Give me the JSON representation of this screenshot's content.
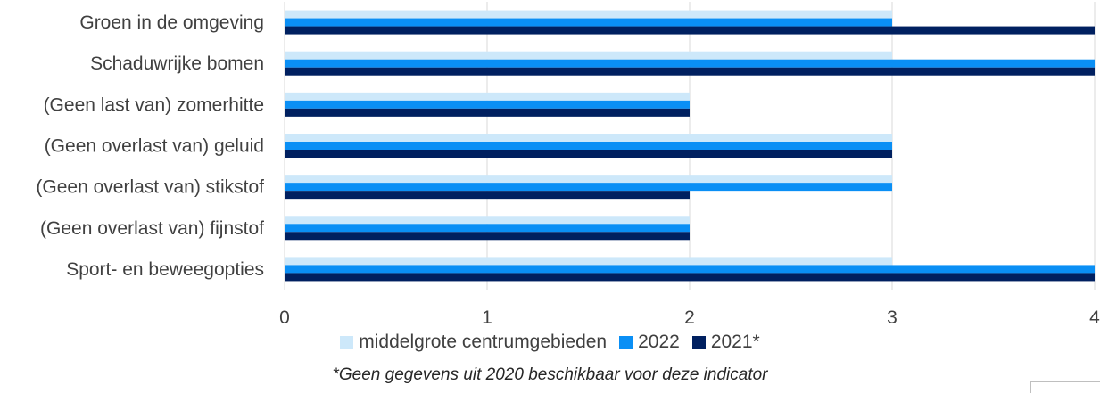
{
  "chart_data": {
    "type": "bar",
    "orientation": "horizontal",
    "categories": [
      "Groen in de omgeving",
      "Schaduwrijke bomen",
      "(Geen last van) zomerhitte",
      "(Geen overlast van) geluid",
      "(Geen overlast van) stikstof",
      "(Geen overlast van) fijnstof",
      "Sport- en beweegopties"
    ],
    "series": [
      {
        "name": "middelgrote centrumgebieden",
        "color": "#cde8fa",
        "values": [
          3,
          3,
          2,
          3,
          3,
          2,
          3
        ]
      },
      {
        "name": "2022",
        "color": "#0a8ff5",
        "values": [
          3,
          4,
          2,
          3,
          3,
          2,
          4
        ]
      },
      {
        "name": "2021*",
        "color": "#002060",
        "values": [
          4,
          4,
          2,
          3,
          2,
          2,
          4
        ]
      }
    ],
    "xlim": [
      0,
      4
    ],
    "xticks": [
      "0",
      "1",
      "2",
      "3",
      "4"
    ],
    "grid": true,
    "legend_position": "bottom",
    "footnote": "*Geen gegevens uit 2020 beschikbaar voor deze indicator"
  }
}
